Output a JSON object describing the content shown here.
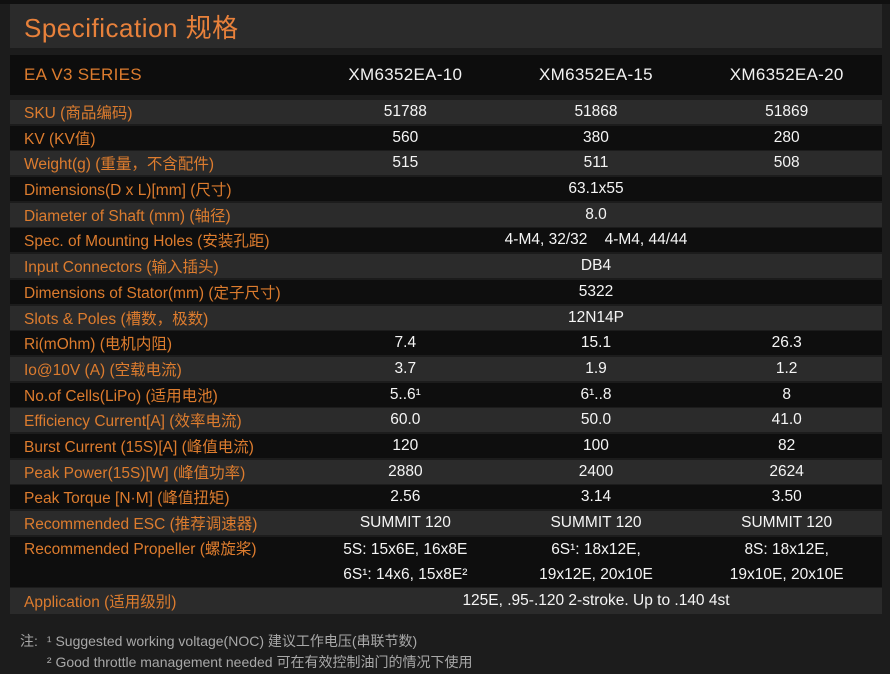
{
  "title": "Specification 规格",
  "header": {
    "series_label": "EA V3 SERIES",
    "columns": [
      "XM6352EA-10",
      "XM6352EA-15",
      "XM6352EA-20"
    ]
  },
  "rows": [
    {
      "label": "SKU (商品编码)",
      "values": [
        "51788",
        "51868",
        "51869"
      ]
    },
    {
      "label": "KV (KV值)",
      "values": [
        "560",
        "380",
        "280"
      ]
    },
    {
      "label": "Weight(g) (重量，不含配件)",
      "values": [
        "515",
        "511",
        "508"
      ]
    },
    {
      "label": "Dimensions(D x L)[mm] (尺寸)",
      "merged": "63.1x55"
    },
    {
      "label": "Diameter of Shaft (mm) (轴径)",
      "merged": "8.0"
    },
    {
      "label": "Spec. of Mounting Holes (安装孔距)",
      "merged": "4-M4, 32/32    4-M4, 44/44"
    },
    {
      "label": "Input Connectors (输入插头)",
      "merged": "DB4"
    },
    {
      "label": "Dimensions of Stator(mm) (定子尺寸)",
      "merged": "5322"
    },
    {
      "label": "Slots & Poles (槽数，极数)",
      "merged": "12N14P"
    },
    {
      "label": "Ri(mOhm) (电机内阻)",
      "values": [
        "7.4",
        "15.1",
        "26.3"
      ]
    },
    {
      "label": "Io@10V (A) (空载电流)",
      "values": [
        "3.7",
        "1.9",
        "1.2"
      ]
    },
    {
      "label": "No.of Cells(LiPo) (适用电池)",
      "values": [
        "5..6¹",
        "6¹..8",
        "8"
      ]
    },
    {
      "label": "Efficiency Current[A] (效率电流)",
      "values": [
        "60.0",
        "50.0",
        "41.0"
      ]
    },
    {
      "label": "Burst Current (15S)[A] (峰值电流)",
      "values": [
        "120",
        "100",
        "82"
      ]
    },
    {
      "label": "Peak Power(15S)[W] (峰值功率)",
      "values": [
        "2880",
        "2400",
        "2624"
      ]
    },
    {
      "label": "Peak Torque [N·M] (峰值扭矩)",
      "values": [
        "2.56",
        "3.14",
        "3.50"
      ]
    },
    {
      "label": "Recommended ESC (推荐调速器)",
      "values": [
        "SUMMIT 120",
        "SUMMIT 120",
        "SUMMIT 120"
      ]
    },
    {
      "label": "Recommended Propeller (螺旋桨)",
      "values2": [
        [
          "5S: 15x6E, 16x8E",
          "6S¹: 14x6, 15x8E²"
        ],
        [
          "6S¹: 18x12E,",
          "19x12E, 20x10E"
        ],
        [
          "8S: 18x12E,",
          "19x10E, 20x10E"
        ]
      ]
    },
    {
      "label": "Application (适用级别)",
      "merged": "125E, .95-.120 2-stroke. Up to .140 4st"
    }
  ],
  "notes": {
    "prefix": "注:",
    "line1": "¹ Suggested working voltage(NOC) 建议工作电压(串联节数)",
    "line2": "² Good throttle management needed 可在有效控制油门的情况下使用"
  },
  "colors": {
    "accent_orange": "#e8813b",
    "label_orange": "#dd7c2e",
    "value_white": "#f5f5f5",
    "row_light": "#2b2b2b",
    "row_dark": "#0e0e0e",
    "page_bg": "#1c1c1c",
    "notes_gray": "#a8a8a8"
  }
}
